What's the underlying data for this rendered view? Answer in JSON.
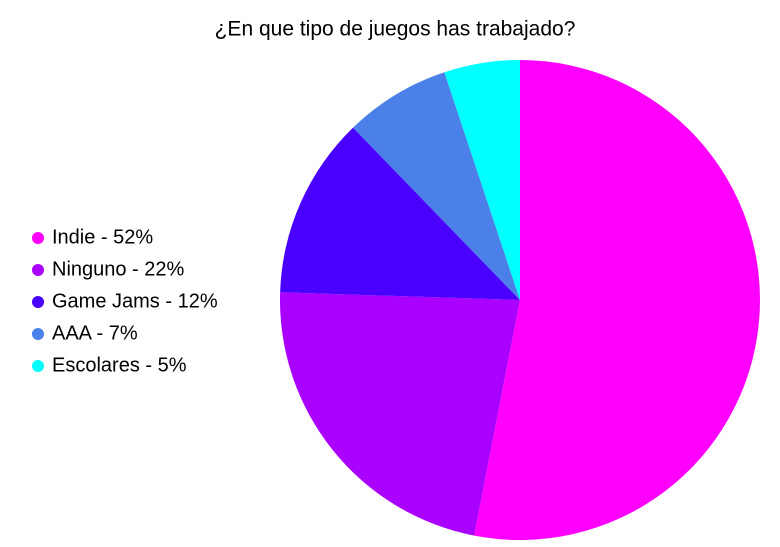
{
  "chart_data": {
    "type": "pie",
    "title": "¿En que tipo de juegos has trabajado?",
    "categories": [
      "Indie - 52%",
      "Ninguno - 22%",
      "Game Jams - 12%",
      "AAA - 7%",
      "Escolares - 5%"
    ],
    "values": [
      52,
      22,
      12,
      7,
      5
    ],
    "colors": [
      "#ff00ff",
      "#aa00ff",
      "#4a00ff",
      "#4a80e8",
      "#00ffff"
    ],
    "legend": "left"
  }
}
